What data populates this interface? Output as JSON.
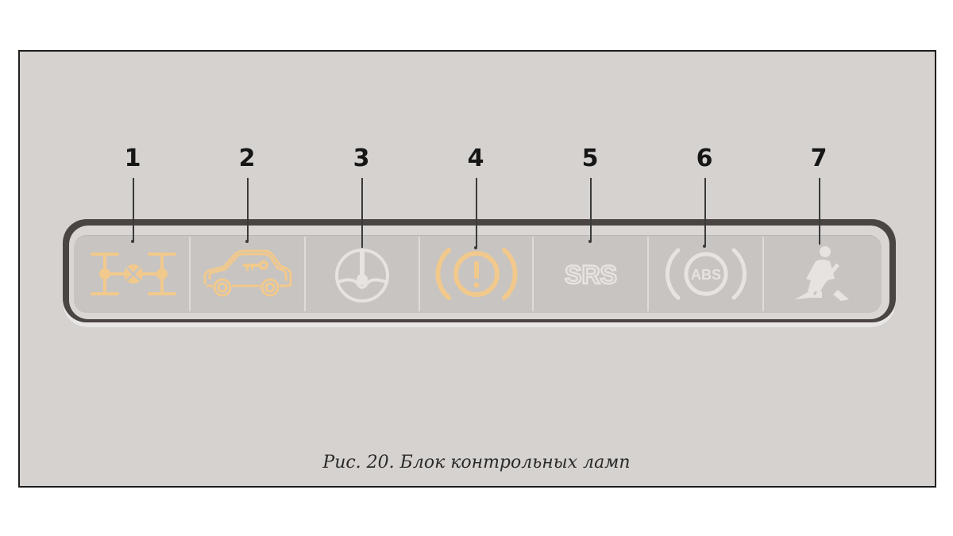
{
  "figure": {
    "caption": "Рис. 20. Блок контрольных ламп"
  },
  "colors": {
    "lit_lamp": "#f2c98c",
    "unlit_lamp": "#e6e3e0",
    "panel_dark": "#4a4543",
    "background": "#d6d2cf"
  },
  "lamps": [
    {
      "number": "1",
      "icon": "four-wheel-drive-icon",
      "state": "lit"
    },
    {
      "number": "2",
      "icon": "car-key-immobilizer-icon",
      "state": "lit"
    },
    {
      "number": "3",
      "icon": "steering-wheel-icon",
      "state": "unlit"
    },
    {
      "number": "4",
      "icon": "brake-warning-icon",
      "state": "lit"
    },
    {
      "number": "5",
      "icon": "srs-airbag-icon",
      "label": "SRS",
      "state": "unlit"
    },
    {
      "number": "6",
      "icon": "abs-icon",
      "label": "ABS",
      "state": "unlit"
    },
    {
      "number": "7",
      "icon": "seat-belt-icon",
      "state": "unlit"
    }
  ]
}
